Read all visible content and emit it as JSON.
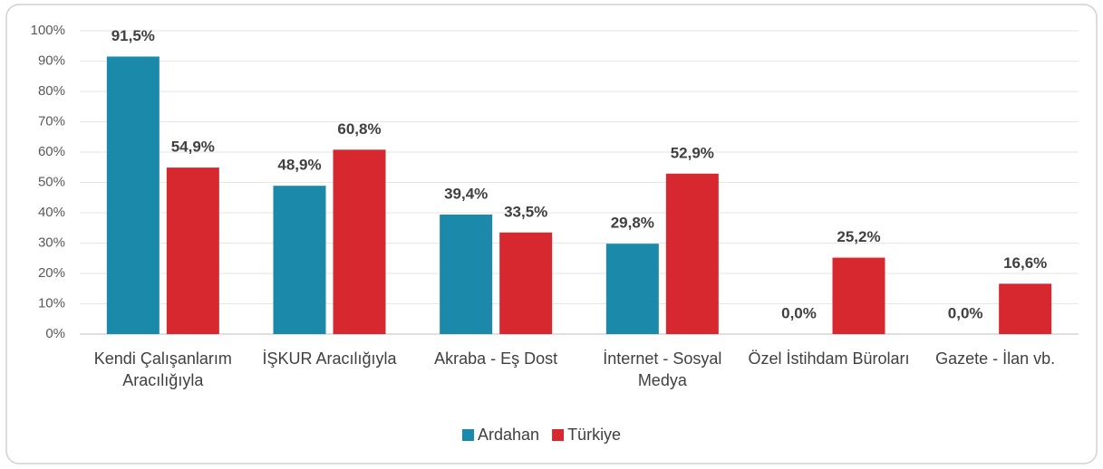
{
  "chart_data": {
    "type": "bar",
    "categories": [
      "Kendi Çalışanlarım Aracılığıyla",
      "İŞKUR Aracılığıyla",
      "Akraba - Eş Dost",
      "İnternet - Sosyal Medya",
      "Özel İstihdam Büroları",
      "Gazete - İlan vb."
    ],
    "series": [
      {
        "name": "Ardahan",
        "color": "#1b8aaa",
        "values": [
          91.5,
          48.9,
          39.4,
          29.8,
          0.0,
          0.0
        ],
        "value_labels": [
          "91,5%",
          "48,9%",
          "39,4%",
          "29,8%",
          "0,0%",
          "0,0%"
        ]
      },
      {
        "name": "Türkiye",
        "color": "#d7282f",
        "values": [
          54.9,
          60.8,
          33.5,
          52.9,
          25.2,
          16.6
        ],
        "value_labels": [
          "54,9%",
          "60,8%",
          "33,5%",
          "52,9%",
          "25,2%",
          "16,6%"
        ]
      }
    ],
    "ylim": [
      0,
      100
    ],
    "yticks": [
      {
        "value": 0,
        "label": "0%"
      },
      {
        "value": 10,
        "label": "10%"
      },
      {
        "value": 20,
        "label": "20%"
      },
      {
        "value": 30,
        "label": "30%"
      },
      {
        "value": 40,
        "label": "40%"
      },
      {
        "value": 50,
        "label": "50%"
      },
      {
        "value": 60,
        "label": "60%"
      },
      {
        "value": 70,
        "label": "70%"
      },
      {
        "value": 80,
        "label": "80%"
      },
      {
        "value": 90,
        "label": "90%"
      },
      {
        "value": 100,
        "label": "100%"
      }
    ],
    "grid": true,
    "legend": "bottom"
  }
}
